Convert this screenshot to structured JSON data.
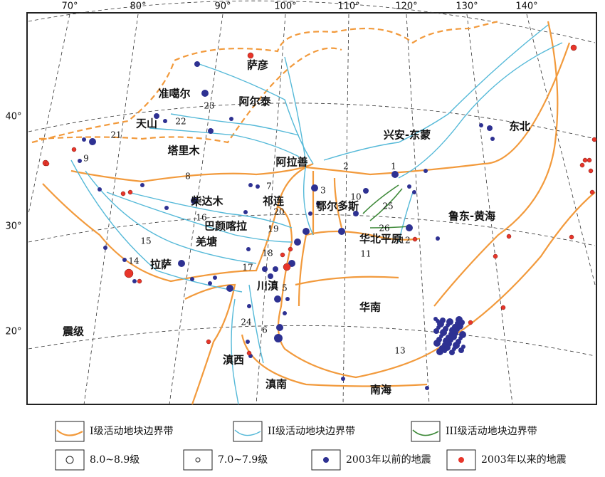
{
  "map": {
    "lon_labels": [
      "70°",
      "80°",
      "90°",
      "100°",
      "110°",
      "120°",
      "130°",
      "140°"
    ],
    "lat_labels": [
      "40°",
      "30°",
      "20°"
    ],
    "regions": [
      "萨彦",
      "准噶尔",
      "阿尔泰",
      "天山",
      "塔里木",
      "阿拉善",
      "兴安-东蒙",
      "东北",
      "柴达木",
      "祁连",
      "鄂尔多斯",
      "巴颜喀拉",
      "羌塘",
      "拉萨",
      "川滇",
      "华北平原",
      "鲁东-黄海",
      "华南",
      "滇西",
      "滇南",
      "南海",
      "震级"
    ],
    "fault_numbers": [
      "1",
      "2",
      "3",
      "5",
      "6",
      "7",
      "8",
      "9",
      "10",
      "11",
      "12",
      "13",
      "14",
      "15",
      "16",
      "17",
      "18",
      "19",
      "20",
      "21",
      "22",
      "23",
      "24",
      "25",
      "26"
    ]
  },
  "legend": {
    "items": [
      "I级活动地块边界带",
      "II级活动地块边界带",
      "III级活动地块边界带",
      "8.0~8.9级",
      "7.0~7.9级",
      "2003年以前的地震",
      "2003年以来的地震"
    ]
  }
}
